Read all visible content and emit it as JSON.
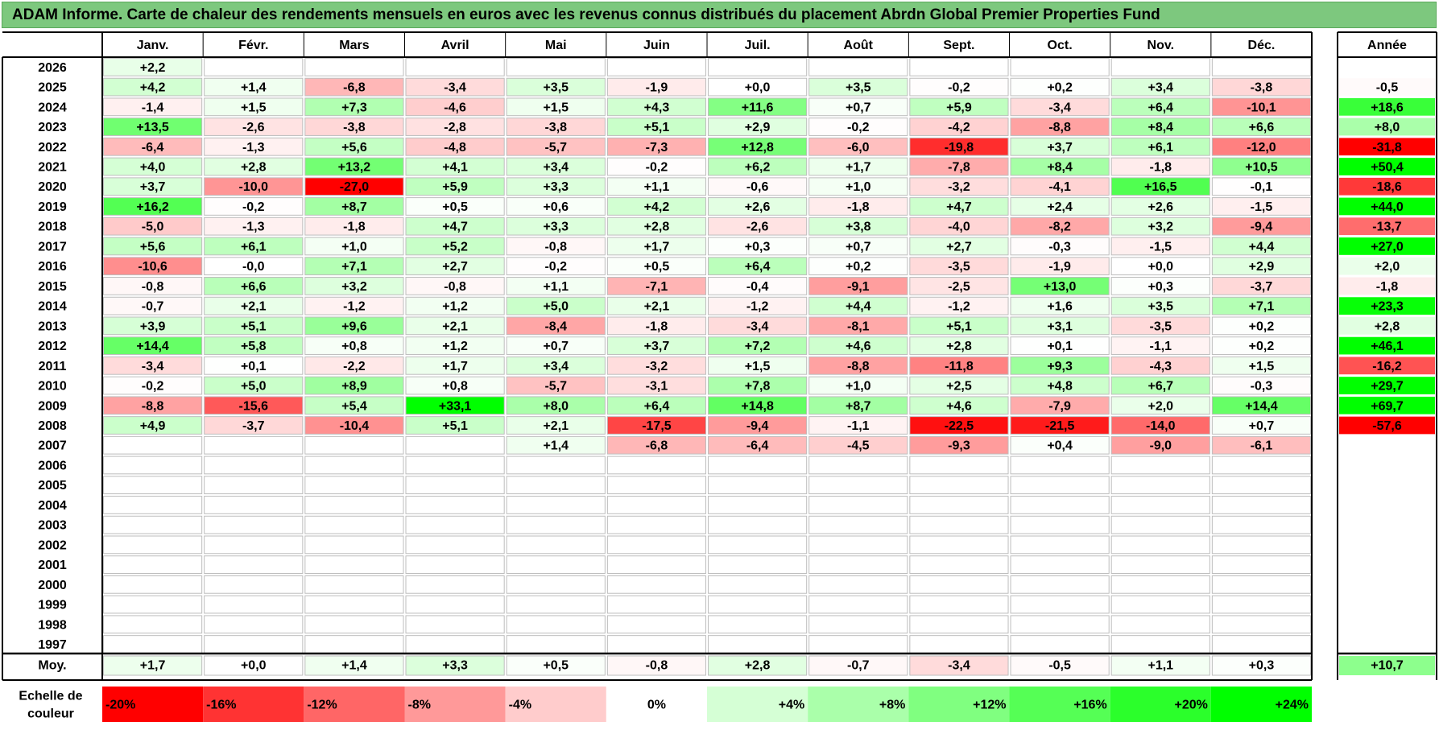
{
  "title": "ADAM Informe. Carte de chaleur des rendements mensuels en euros avec les revenus connus distribués du placement Abrdn Global Premier Properties Fund",
  "chart_data": {
    "type": "heatmap",
    "months": [
      "Janv.",
      "Févr.",
      "Mars",
      "Avril",
      "Mai",
      "Juin",
      "Juil.",
      "Août",
      "Sept.",
      "Oct.",
      "Nov.",
      "Déc."
    ],
    "year_header": "Année",
    "years": [
      "2026",
      "2025",
      "2024",
      "2023",
      "2022",
      "2021",
      "2020",
      "2019",
      "2018",
      "2017",
      "2016",
      "2015",
      "2014",
      "2013",
      "2012",
      "2011",
      "2010",
      "2009",
      "2008",
      "2007",
      "2006",
      "2005",
      "2004",
      "2003",
      "2002",
      "2001",
      "2000",
      "1999",
      "1998",
      "1997"
    ],
    "values": [
      [
        "+2,2",
        "",
        "",
        "",
        "",
        "",
        "",
        "",
        "",
        "",
        "",
        ""
      ],
      [
        "+4,2",
        "+1,4",
        "-6,8",
        "-3,4",
        "+3,5",
        "-1,9",
        "+0,0",
        "+3,5",
        "-0,2",
        "+0,2",
        "+3,4",
        "-3,8"
      ],
      [
        "-1,4",
        "+1,5",
        "+7,3",
        "-4,6",
        "+1,5",
        "+4,3",
        "+11,6",
        "+0,7",
        "+5,9",
        "-3,4",
        "+6,4",
        "-10,1"
      ],
      [
        "+13,5",
        "-2,6",
        "-3,8",
        "-2,8",
        "-3,8",
        "+5,1",
        "+2,9",
        "-0,2",
        "-4,2",
        "-8,8",
        "+8,4",
        "+6,6"
      ],
      [
        "-6,4",
        "-1,3",
        "+5,6",
        "-4,8",
        "-5,7",
        "-7,3",
        "+12,8",
        "-6,0",
        "-19,8",
        "+3,7",
        "+6,1",
        "-12,0"
      ],
      [
        "+4,0",
        "+2,8",
        "+13,2",
        "+4,1",
        "+3,4",
        "-0,2",
        "+6,2",
        "+1,7",
        "-7,8",
        "+8,4",
        "-1,8",
        "+10,5"
      ],
      [
        "+3,7",
        "-10,0",
        "-27,0",
        "+5,9",
        "+3,3",
        "+1,1",
        "-0,6",
        "+1,0",
        "-3,2",
        "-4,1",
        "+16,5",
        "-0,1"
      ],
      [
        "+16,2",
        "-0,2",
        "+8,7",
        "+0,5",
        "+0,6",
        "+4,2",
        "+2,6",
        "-1,8",
        "+4,7",
        "+2,4",
        "+2,6",
        "-1,5"
      ],
      [
        "-5,0",
        "-1,3",
        "-1,8",
        "+4,7",
        "+3,3",
        "+2,8",
        "-2,6",
        "+3,8",
        "-4,0",
        "-8,2",
        "+3,2",
        "-9,4"
      ],
      [
        "+5,6",
        "+6,1",
        "+1,0",
        "+5,2",
        "-0,8",
        "+1,7",
        "+0,3",
        "+0,7",
        "+2,7",
        "-0,3",
        "-1,5",
        "+4,4"
      ],
      [
        "-10,6",
        "-0,0",
        "+7,1",
        "+2,7",
        "-0,2",
        "+0,5",
        "+6,4",
        "+0,2",
        "-3,5",
        "-1,9",
        "+0,0",
        "+2,9"
      ],
      [
        "-0,8",
        "+6,6",
        "+3,2",
        "-0,8",
        "+1,1",
        "-7,1",
        "-0,4",
        "-9,1",
        "-2,5",
        "+13,0",
        "+0,3",
        "-3,7"
      ],
      [
        "-0,7",
        "+2,1",
        "-1,2",
        "+1,2",
        "+5,0",
        "+2,1",
        "-1,2",
        "+4,4",
        "-1,2",
        "+1,6",
        "+3,5",
        "+7,1"
      ],
      [
        "+3,9",
        "+5,1",
        "+9,6",
        "+2,1",
        "-8,4",
        "-1,8",
        "-3,4",
        "-8,1",
        "+5,1",
        "+3,1",
        "-3,5",
        "+0,2"
      ],
      [
        "+14,4",
        "+5,8",
        "+0,8",
        "+1,2",
        "+0,7",
        "+3,7",
        "+7,2",
        "+4,6",
        "+2,8",
        "+0,1",
        "-1,1",
        "+0,2"
      ],
      [
        "-3,4",
        "+0,1",
        "-2,2",
        "+1,7",
        "+3,4",
        "-3,2",
        "+1,5",
        "-8,8",
        "-11,8",
        "+9,3",
        "-4,3",
        "+1,5"
      ],
      [
        "-0,2",
        "+5,0",
        "+8,9",
        "+0,8",
        "-5,7",
        "-3,1",
        "+7,8",
        "+1,0",
        "+2,5",
        "+4,8",
        "+6,7",
        "-0,3"
      ],
      [
        "-8,8",
        "-15,6",
        "+5,4",
        "+33,1",
        "+8,0",
        "+6,4",
        "+14,8",
        "+8,7",
        "+4,6",
        "-7,9",
        "+2,0",
        "+14,4"
      ],
      [
        "+4,9",
        "-3,7",
        "-10,4",
        "+5,1",
        "+2,1",
        "-17,5",
        "-9,4",
        "-1,1",
        "-22,5",
        "-21,5",
        "-14,0",
        "+0,7"
      ],
      [
        "",
        "",
        "",
        "",
        "+1,4",
        "-6,8",
        "-6,4",
        "-4,5",
        "-9,3",
        "+0,4",
        "-9,0",
        "-6,1"
      ],
      [
        "",
        "",
        "",
        "",
        "",
        "",
        "",
        "",
        "",
        "",
        "",
        ""
      ],
      [
        "",
        "",
        "",
        "",
        "",
        "",
        "",
        "",
        "",
        "",
        "",
        ""
      ],
      [
        "",
        "",
        "",
        "",
        "",
        "",
        "",
        "",
        "",
        "",
        "",
        ""
      ],
      [
        "",
        "",
        "",
        "",
        "",
        "",
        "",
        "",
        "",
        "",
        "",
        ""
      ],
      [
        "",
        "",
        "",
        "",
        "",
        "",
        "",
        "",
        "",
        "",
        "",
        ""
      ],
      [
        "",
        "",
        "",
        "",
        "",
        "",
        "",
        "",
        "",
        "",
        "",
        ""
      ],
      [
        "",
        "",
        "",
        "",
        "",
        "",
        "",
        "",
        "",
        "",
        "",
        ""
      ],
      [
        "",
        "",
        "",
        "",
        "",
        "",
        "",
        "",
        "",
        "",
        "",
        ""
      ],
      [
        "",
        "",
        "",
        "",
        "",
        "",
        "",
        "",
        "",
        "",
        "",
        ""
      ],
      [
        "",
        "",
        "",
        "",
        "",
        "",
        "",
        "",
        "",
        "",
        "",
        ""
      ]
    ],
    "annual": [
      "",
      "-0,5",
      "+18,6",
      "+8,0",
      "-31,8",
      "+50,4",
      "-18,6",
      "+44,0",
      "-13,7",
      "+27,0",
      "+2,0",
      "-1,8",
      "+23,3",
      "+2,8",
      "+46,1",
      "-16,2",
      "+29,7",
      "+69,7",
      "-57,6",
      "",
      "",
      "",
      "",
      "",
      "",
      "",
      "",
      "",
      "",
      ""
    ],
    "average_label": "Moy.",
    "averages": [
      "+1,7",
      "+0,0",
      "+1,4",
      "+3,3",
      "+0,5",
      "-0,8",
      "+2,8",
      "-0,7",
      "-3,4",
      "-0,5",
      "+1,1",
      "+0,3"
    ],
    "average_annual": "+10,7",
    "scale_label": [
      "Echelle de",
      "couleur"
    ],
    "scale": [
      {
        "label": "-20%",
        "value": -20,
        "color": "#ff0000"
      },
      {
        "label": "-16%",
        "value": -16,
        "color": "#ff3333"
      },
      {
        "label": "-12%",
        "value": -12,
        "color": "#ff6666"
      },
      {
        "label": "-8%",
        "value": -8,
        "color": "#ff9999"
      },
      {
        "label": "-4%",
        "value": -4,
        "color": "#ffcccc"
      },
      {
        "label": "0%",
        "value": 0,
        "color": "#ffffff"
      },
      {
        "label": "+4%",
        "value": 4,
        "color": "#d5ffd5"
      },
      {
        "label": "+8%",
        "value": 8,
        "color": "#aaffaa"
      },
      {
        "label": "+12%",
        "value": 12,
        "color": "#80ff80"
      },
      {
        "label": "+16%",
        "value": 16,
        "color": "#55ff55"
      },
      {
        "label": "+20%",
        "value": 20,
        "color": "#2bff2b"
      },
      {
        "label": "+24%",
        "value": 24,
        "color": "#00ff00"
      }
    ],
    "colors": {
      "title_bg": "#7dc87e",
      "negative_max": "#ff0000",
      "positive_max": "#00ff00"
    }
  }
}
